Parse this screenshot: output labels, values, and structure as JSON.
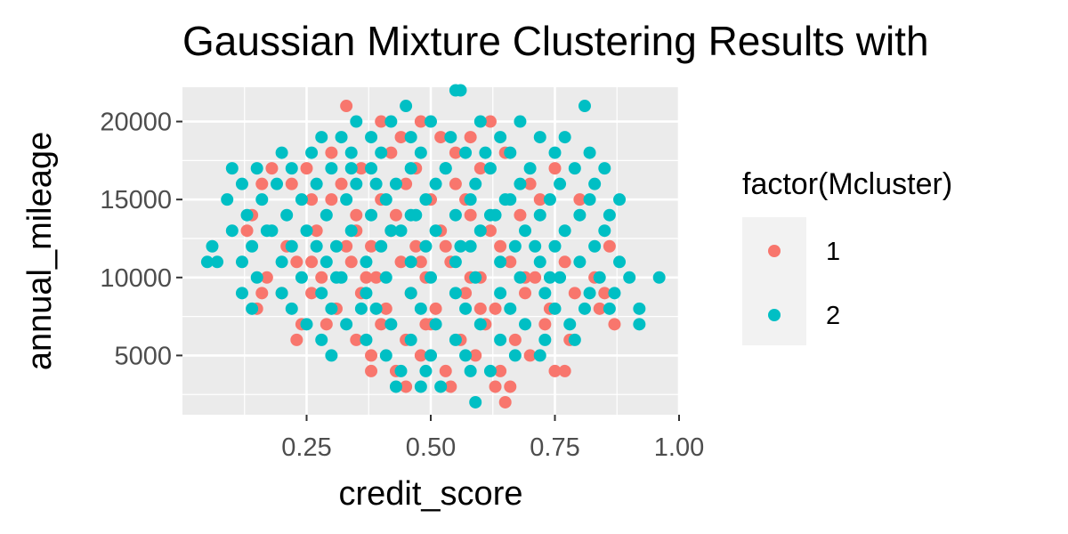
{
  "chart_data": {
    "type": "scatter",
    "title": "Gaussian Mixture Clustering Results with",
    "xlabel": "credit_score",
    "ylabel": "annual_mileage",
    "xlim": [
      0.0,
      1.0
    ],
    "ylim": [
      1200,
      22200
    ],
    "x_ticks": [
      0.25,
      0.5,
      0.75,
      1.0
    ],
    "x_tick_labels": [
      "0.25",
      "0.50",
      "0.75",
      "1.00"
    ],
    "y_ticks": [
      5000,
      10000,
      15000,
      20000
    ],
    "y_tick_labels": [
      "5000",
      "10000",
      "15000",
      "20000"
    ],
    "grid": true,
    "legend_position": "right",
    "legend_title": "factor(Mcluster)",
    "series": [
      {
        "name": "1",
        "color": "#F8766D",
        "points": [
          [
            0.33,
            21000
          ],
          [
            0.4,
            20000
          ],
          [
            0.44,
            19000
          ],
          [
            0.48,
            20000
          ],
          [
            0.52,
            19000
          ],
          [
            0.55,
            18000
          ],
          [
            0.58,
            19000
          ],
          [
            0.62,
            20000
          ],
          [
            0.36,
            17000
          ],
          [
            0.42,
            18000
          ],
          [
            0.3,
            18000
          ],
          [
            0.25,
            17000
          ],
          [
            0.18,
            17000
          ],
          [
            0.16,
            16000
          ],
          [
            0.22,
            16000
          ],
          [
            0.26,
            15000
          ],
          [
            0.3,
            15000
          ],
          [
            0.35,
            14000
          ],
          [
            0.4,
            15000
          ],
          [
            0.45,
            16000
          ],
          [
            0.5,
            15000
          ],
          [
            0.55,
            16000
          ],
          [
            0.6,
            17000
          ],
          [
            0.65,
            18000
          ],
          [
            0.7,
            16000
          ],
          [
            0.75,
            17000
          ],
          [
            0.8,
            15000
          ],
          [
            0.72,
            15000
          ],
          [
            0.68,
            14000
          ],
          [
            0.62,
            13000
          ],
          [
            0.58,
            14000
          ],
          [
            0.52,
            13000
          ],
          [
            0.47,
            12000
          ],
          [
            0.42,
            13000
          ],
          [
            0.38,
            12000
          ],
          [
            0.33,
            12000
          ],
          [
            0.27,
            13000
          ],
          [
            0.21,
            12000
          ],
          [
            0.14,
            14000
          ],
          [
            0.13,
            13000
          ],
          [
            0.17,
            10000
          ],
          [
            0.23,
            11000
          ],
          [
            0.28,
            10000
          ],
          [
            0.34,
            11000
          ],
          [
            0.39,
            10000
          ],
          [
            0.44,
            11000
          ],
          [
            0.49,
            10000
          ],
          [
            0.54,
            11000
          ],
          [
            0.6,
            10000
          ],
          [
            0.66,
            11000
          ],
          [
            0.71,
            10000
          ],
          [
            0.77,
            11000
          ],
          [
            0.83,
            10000
          ],
          [
            0.86,
            12000
          ],
          [
            0.85,
            9000
          ],
          [
            0.79,
            9000
          ],
          [
            0.74,
            8000
          ],
          [
            0.69,
            9000
          ],
          [
            0.63,
            8000
          ],
          [
            0.57,
            9000
          ],
          [
            0.51,
            8000
          ],
          [
            0.46,
            9000
          ],
          [
            0.41,
            8000
          ],
          [
            0.36,
            9000
          ],
          [
            0.31,
            8000
          ],
          [
            0.26,
            9000
          ],
          [
            0.2,
            9000
          ],
          [
            0.15,
            8000
          ],
          [
            0.16,
            9000
          ],
          [
            0.24,
            7000
          ],
          [
            0.29,
            7000
          ],
          [
            0.35,
            6000
          ],
          [
            0.4,
            7000
          ],
          [
            0.45,
            6000
          ],
          [
            0.5,
            7000
          ],
          [
            0.56,
            6000
          ],
          [
            0.61,
            7000
          ],
          [
            0.67,
            6000
          ],
          [
            0.73,
            7000
          ],
          [
            0.78,
            6000
          ],
          [
            0.84,
            8000
          ],
          [
            0.87,
            7000
          ],
          [
            0.38,
            5000
          ],
          [
            0.43,
            4000
          ],
          [
            0.48,
            5000
          ],
          [
            0.53,
            4000
          ],
          [
            0.59,
            5000
          ],
          [
            0.64,
            4000
          ],
          [
            0.7,
            5000
          ],
          [
            0.75,
            4000
          ],
          [
            0.38,
            4000
          ],
          [
            0.45,
            3000
          ],
          [
            0.54,
            3000
          ],
          [
            0.63,
            3000
          ],
          [
            0.65,
            2000
          ],
          [
            0.66,
            3000
          ],
          [
            0.77,
            4000
          ],
          [
            0.23,
            6000
          ],
          [
            0.32,
            16000
          ],
          [
            0.47,
            17000
          ],
          [
            0.57,
            15000
          ],
          [
            0.64,
            12000
          ],
          [
            0.53,
            12000
          ],
          [
            0.43,
            14000
          ],
          [
            0.35,
            13000
          ],
          [
            0.69,
            10000
          ],
          [
            0.58,
            10000
          ],
          [
            0.48,
            11000
          ],
          [
            0.37,
            10000
          ],
          [
            0.26,
            11000
          ],
          [
            0.6,
            8000
          ],
          [
            0.49,
            7000
          ]
        ]
      },
      {
        "name": "2",
        "color": "#00BFC4",
        "points": [
          [
            0.55,
            22000
          ],
          [
            0.56,
            22000
          ],
          [
            0.45,
            21000
          ],
          [
            0.81,
            21000
          ],
          [
            0.35,
            20000
          ],
          [
            0.42,
            20000
          ],
          [
            0.5,
            20000
          ],
          [
            0.6,
            20000
          ],
          [
            0.68,
            20000
          ],
          [
            0.28,
            19000
          ],
          [
            0.32,
            19000
          ],
          [
            0.38,
            19000
          ],
          [
            0.46,
            19000
          ],
          [
            0.54,
            19000
          ],
          [
            0.64,
            19000
          ],
          [
            0.72,
            19000
          ],
          [
            0.77,
            19000
          ],
          [
            0.2,
            18000
          ],
          [
            0.26,
            18000
          ],
          [
            0.34,
            18000
          ],
          [
            0.4,
            18000
          ],
          [
            0.48,
            18000
          ],
          [
            0.57,
            18000
          ],
          [
            0.66,
            18000
          ],
          [
            0.75,
            18000
          ],
          [
            0.82,
            18000
          ],
          [
            0.1,
            17000
          ],
          [
            0.15,
            17000
          ],
          [
            0.22,
            17000
          ],
          [
            0.3,
            17000
          ],
          [
            0.38,
            17000
          ],
          [
            0.46,
            17000
          ],
          [
            0.53,
            17000
          ],
          [
            0.62,
            17000
          ],
          [
            0.7,
            17000
          ],
          [
            0.79,
            17000
          ],
          [
            0.85,
            17000
          ],
          [
            0.12,
            16000
          ],
          [
            0.19,
            16000
          ],
          [
            0.27,
            16000
          ],
          [
            0.35,
            16000
          ],
          [
            0.43,
            16000
          ],
          [
            0.51,
            16000
          ],
          [
            0.59,
            16000
          ],
          [
            0.68,
            16000
          ],
          [
            0.76,
            16000
          ],
          [
            0.83,
            16000
          ],
          [
            0.09,
            15000
          ],
          [
            0.16,
            15000
          ],
          [
            0.24,
            15000
          ],
          [
            0.33,
            15000
          ],
          [
            0.41,
            15000
          ],
          [
            0.49,
            15000
          ],
          [
            0.58,
            15000
          ],
          [
            0.66,
            15000
          ],
          [
            0.74,
            15000
          ],
          [
            0.82,
            15000
          ],
          [
            0.88,
            15000
          ],
          [
            0.13,
            14000
          ],
          [
            0.21,
            14000
          ],
          [
            0.29,
            14000
          ],
          [
            0.38,
            14000
          ],
          [
            0.46,
            14000
          ],
          [
            0.55,
            14000
          ],
          [
            0.63,
            14000
          ],
          [
            0.72,
            14000
          ],
          [
            0.8,
            14000
          ],
          [
            0.86,
            14000
          ],
          [
            0.1,
            13000
          ],
          [
            0.17,
            13000
          ],
          [
            0.25,
            13000
          ],
          [
            0.34,
            13000
          ],
          [
            0.42,
            13000
          ],
          [
            0.51,
            13000
          ],
          [
            0.6,
            13000
          ],
          [
            0.69,
            13000
          ],
          [
            0.77,
            13000
          ],
          [
            0.85,
            13000
          ],
          [
            0.06,
            12000
          ],
          [
            0.14,
            12000
          ],
          [
            0.22,
            12000
          ],
          [
            0.31,
            12000
          ],
          [
            0.4,
            12000
          ],
          [
            0.49,
            12000
          ],
          [
            0.58,
            12000
          ],
          [
            0.67,
            12000
          ],
          [
            0.75,
            12000
          ],
          [
            0.83,
            12000
          ],
          [
            0.05,
            11000
          ],
          [
            0.07,
            11000
          ],
          [
            0.12,
            11000
          ],
          [
            0.2,
            11000
          ],
          [
            0.29,
            11000
          ],
          [
            0.37,
            11000
          ],
          [
            0.46,
            11000
          ],
          [
            0.55,
            11000
          ],
          [
            0.64,
            11000
          ],
          [
            0.72,
            11000
          ],
          [
            0.8,
            11000
          ],
          [
            0.88,
            11000
          ],
          [
            0.15,
            10000
          ],
          [
            0.24,
            10000
          ],
          [
            0.32,
            10000
          ],
          [
            0.41,
            10000
          ],
          [
            0.5,
            10000
          ],
          [
            0.59,
            10000
          ],
          [
            0.68,
            10000
          ],
          [
            0.76,
            10000
          ],
          [
            0.84,
            10000
          ],
          [
            0.9,
            10000
          ],
          [
            0.96,
            10000
          ],
          [
            0.12,
            9000
          ],
          [
            0.2,
            9000
          ],
          [
            0.28,
            9000
          ],
          [
            0.37,
            9000
          ],
          [
            0.46,
            9000
          ],
          [
            0.55,
            9000
          ],
          [
            0.64,
            9000
          ],
          [
            0.73,
            9000
          ],
          [
            0.82,
            9000
          ],
          [
            0.87,
            9000
          ],
          [
            0.14,
            8000
          ],
          [
            0.22,
            8000
          ],
          [
            0.3,
            8000
          ],
          [
            0.39,
            8000
          ],
          [
            0.48,
            8000
          ],
          [
            0.57,
            8000
          ],
          [
            0.66,
            8000
          ],
          [
            0.75,
            8000
          ],
          [
            0.81,
            8000
          ],
          [
            0.86,
            8000
          ],
          [
            0.92,
            8000
          ],
          [
            0.25,
            7000
          ],
          [
            0.33,
            7000
          ],
          [
            0.42,
            7000
          ],
          [
            0.51,
            7000
          ],
          [
            0.6,
            7000
          ],
          [
            0.69,
            7000
          ],
          [
            0.78,
            7000
          ],
          [
            0.92,
            7000
          ],
          [
            0.28,
            6000
          ],
          [
            0.37,
            6000
          ],
          [
            0.46,
            6000
          ],
          [
            0.55,
            6000
          ],
          [
            0.64,
            6000
          ],
          [
            0.73,
            6000
          ],
          [
            0.79,
            6000
          ],
          [
            0.3,
            5000
          ],
          [
            0.41,
            5000
          ],
          [
            0.5,
            5000
          ],
          [
            0.57,
            5000
          ],
          [
            0.67,
            5000
          ],
          [
            0.72,
            5000
          ],
          [
            0.44,
            4000
          ],
          [
            0.49,
            4000
          ],
          [
            0.58,
            4000
          ],
          [
            0.62,
            4000
          ],
          [
            0.43,
            3000
          ],
          [
            0.48,
            3000
          ],
          [
            0.52,
            3000
          ],
          [
            0.59,
            2000
          ],
          [
            0.31,
            10000
          ],
          [
            0.44,
            13000
          ],
          [
            0.53,
            17000
          ],
          [
            0.62,
            14000
          ],
          [
            0.71,
            12000
          ],
          [
            0.39,
            16000
          ],
          [
            0.27,
            12000
          ],
          [
            0.36,
            8000
          ],
          [
            0.47,
            14000
          ],
          [
            0.56,
            12000
          ],
          [
            0.65,
            15000
          ],
          [
            0.74,
            10000
          ],
          [
            0.18,
            13000
          ],
          [
            0.34,
            17000
          ],
          [
            0.61,
            18000
          ]
        ]
      }
    ]
  }
}
